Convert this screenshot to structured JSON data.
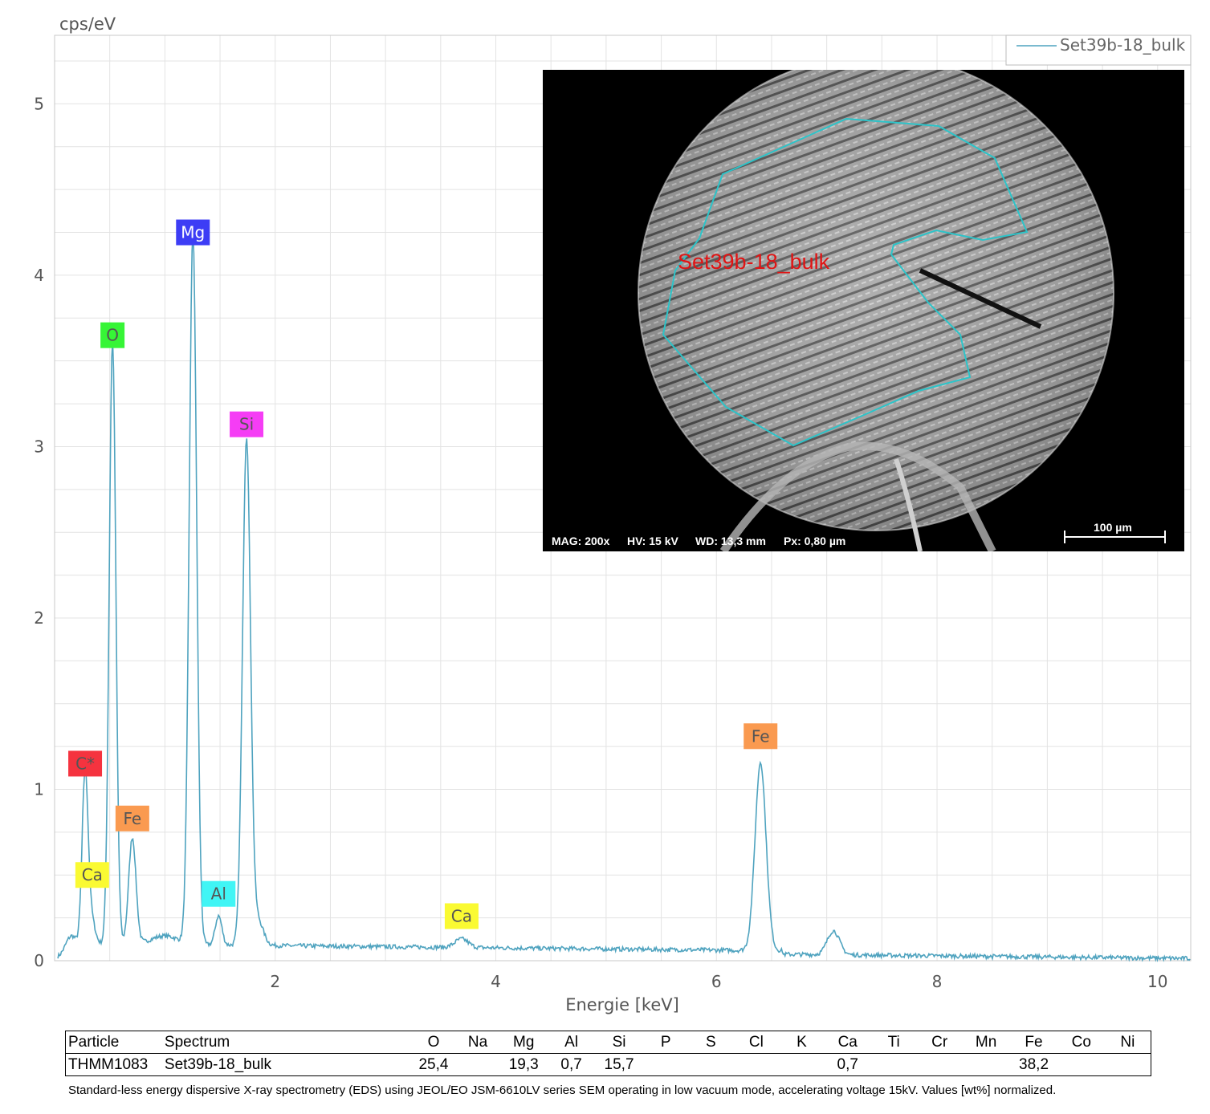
{
  "chart_data": {
    "type": "line",
    "ylabel": "cps/eV",
    "xlabel": "Energie [keV]",
    "xlim": [
      0.0,
      10.3
    ],
    "ylim": [
      0,
      5.4
    ],
    "x_ticks": [
      2,
      4,
      6,
      8,
      10
    ],
    "y_ticks": [
      0,
      1,
      2,
      3,
      4,
      5
    ],
    "grid": true,
    "legend": {
      "placement": "top-right",
      "entries": [
        "Set39b-18_bulk"
      ]
    },
    "series": [
      {
        "name": "Set39b-18_bulk",
        "color": "#4fa3bf",
        "background": 0.08,
        "peaks": [
          {
            "x": 0.15,
            "height": 0.1,
            "sigma": 0.05
          },
          {
            "x": 0.277,
            "height": 1.0,
            "sigma": 0.028
          },
          {
            "x": 0.341,
            "height": 0.12,
            "sigma": 0.03
          },
          {
            "x": 0.525,
            "height": 3.52,
            "sigma": 0.03
          },
          {
            "x": 0.705,
            "height": 0.62,
            "sigma": 0.033
          },
          {
            "x": 1.0,
            "height": 0.05,
            "sigma": 0.12
          },
          {
            "x": 1.254,
            "height": 4.15,
            "sigma": 0.034
          },
          {
            "x": 1.487,
            "height": 0.17,
            "sigma": 0.03
          },
          {
            "x": 1.74,
            "height": 2.95,
            "sigma": 0.036
          },
          {
            "x": 1.84,
            "height": 0.15,
            "sigma": 0.05
          },
          {
            "x": 3.69,
            "height": 0.05,
            "sigma": 0.06
          },
          {
            "x": 6.4,
            "height": 1.1,
            "sigma": 0.05
          },
          {
            "x": 7.06,
            "height": 0.14,
            "sigma": 0.055
          }
        ]
      }
    ],
    "annotations": [
      {
        "text": "C*",
        "x": 0.277,
        "y": 1.15,
        "color": "#f5333f"
      },
      {
        "text": "Ca",
        "x": 0.341,
        "y": 0.5,
        "color": "#fafa32"
      },
      {
        "text": "O",
        "x": 0.525,
        "y": 3.65,
        "color": "#36f536"
      },
      {
        "text": "Fe",
        "x": 0.705,
        "y": 0.83,
        "color": "#fa9a50"
      },
      {
        "text": "Mg",
        "x": 1.254,
        "y": 4.25,
        "color": "#3d3df5"
      },
      {
        "text": "Al",
        "x": 1.487,
        "y": 0.39,
        "color": "#40f5f5"
      },
      {
        "text": "Si",
        "x": 1.74,
        "y": 3.13,
        "color": "#f53df5"
      },
      {
        "text": "Ca",
        "x": 3.69,
        "y": 0.26,
        "color": "#fafa32"
      },
      {
        "text": "Fe",
        "x": 6.4,
        "y": 1.31,
        "color": "#fa9a50"
      }
    ]
  },
  "inset": {
    "region_label": "Set39b-18_bulk",
    "mag": "MAG: 200x",
    "hv": "HV: 15 kV",
    "wd": "WD: 13,3 mm",
    "px": "Px: 0,80 µm",
    "scale": "100 µm"
  },
  "table": {
    "headers": [
      "Particle",
      "Spectrum",
      "O",
      "Na",
      "Mg",
      "Al",
      "Si",
      "P",
      "S",
      "Cl",
      "K",
      "Ca",
      "Ti",
      "Cr",
      "Mn",
      "Fe",
      "Co",
      "Ni"
    ],
    "rows": [
      [
        "THMM1083",
        "Set39b-18_bulk",
        "25,4",
        "",
        "19,3",
        "0,7",
        "15,7",
        "",
        "",
        "",
        "",
        "0,7",
        "",
        "",
        "",
        "38,2",
        "",
        ""
      ]
    ]
  },
  "footnote": "Standard-less energy dispersive X-ray spectrometry (EDS) using JEOL/EO JSM-6610LV series SEM operating in low vacuum mode, accelerating voltage 15kV. Values [wt%] normalized."
}
